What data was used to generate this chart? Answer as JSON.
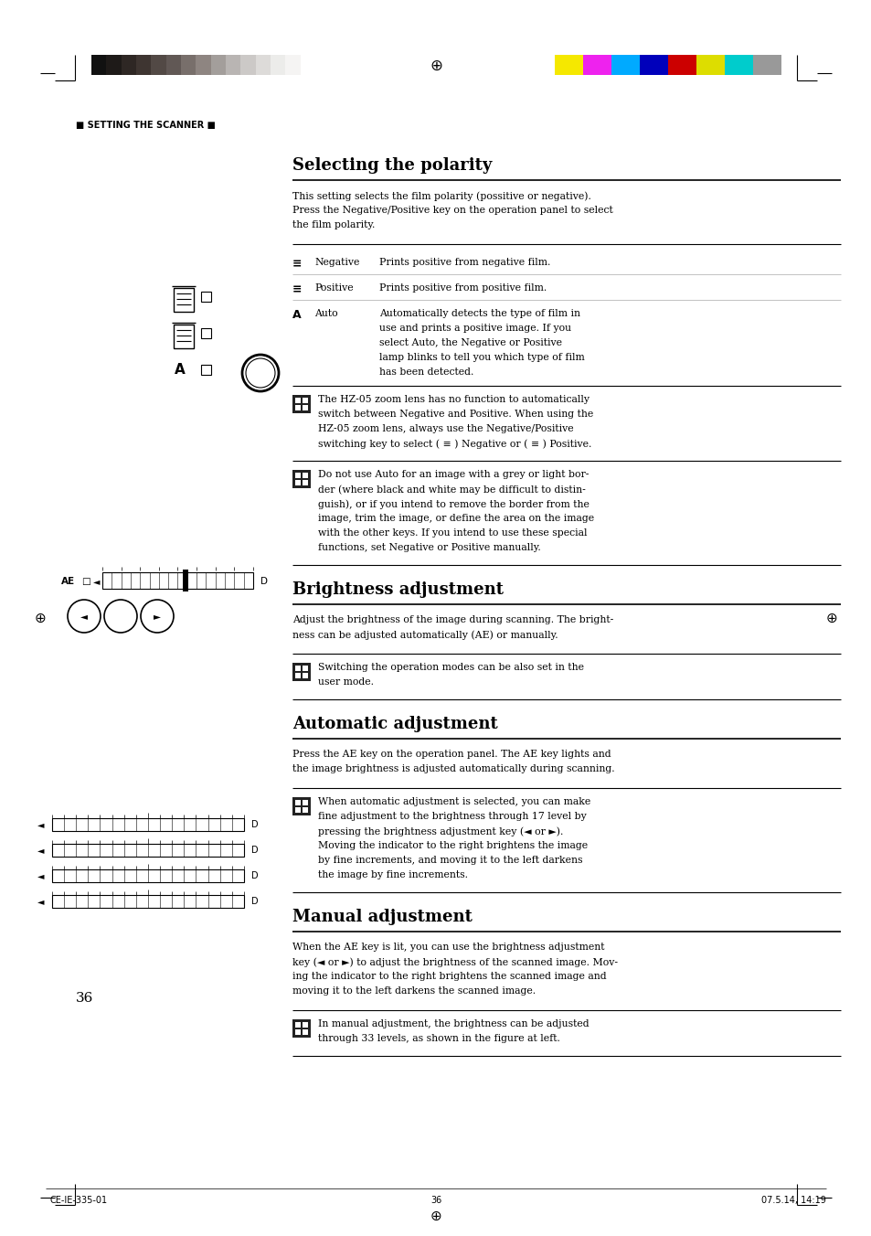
{
  "bg_color": "#ffffff",
  "page_width": 9.54,
  "page_height": 13.52,
  "gray_colors": [
    "#111111",
    "#1e1a18",
    "#2e2724",
    "#3e3531",
    "#524945",
    "#615855",
    "#786f6b",
    "#8e8581",
    "#a39e9b",
    "#b9b5b3",
    "#ccc9c7",
    "#dddbd9",
    "#ececea",
    "#f5f4f3",
    "#ffffff"
  ],
  "color_colors": [
    "#f5e800",
    "#ee22ee",
    "#00aaff",
    "#0000bb",
    "#cc0000",
    "#dddd00",
    "#00cccc",
    "#999999"
  ],
  "section1_title": "Selecting the polarity",
  "section1_intro_lines": [
    "This setting selects the film polarity (possitive or negative).",
    "Press the Negative/Positive key on the operation panel to select",
    "the film polarity."
  ],
  "section2_title": "Brightness adjustment",
  "section2_intro_lines": [
    "Adjust the brightness of the image during scanning. The bright-",
    "ness can be adjusted automatically (AE) or manually."
  ],
  "section3_title": "Automatic adjustment",
  "section3_intro_lines": [
    "Press the AE key on the operation panel. The AE key lights and",
    "the image brightness is adjusted automatically during scanning."
  ],
  "section4_title": "Manual adjustment",
  "section4_intro_lines": [
    "When the AE key is lit, you can use the brightness adjustment",
    "key (◄ or ►) to adjust the brightness of the scanned image. Mov-",
    "ing the indicator to the right brightens the scanned image and",
    "moving it to the left darkens the scanned image."
  ],
  "note1_lines": [
    "The HZ-05 zoom lens has no function to automatically",
    "switch between Negative and Positive. When using the",
    "HZ-05 zoom lens, always use the Negative/Positive",
    "switching key to select ( ≡ ) Negative or ( ≡ ) Positive."
  ],
  "note2_lines": [
    "Do not use Auto for an image with a grey or light bor-",
    "der (where black and white may be difficult to distin-",
    "guish), or if you intend to remove the border from the",
    "image, trim the image, or define the area on the image",
    "with the other keys. If you intend to use these special",
    "functions, set Negative or Positive manually."
  ],
  "note3_lines": [
    "Switching the operation modes can be also set in the",
    "user mode."
  ],
  "note4_lines": [
    "When automatic adjustment is selected, you can make",
    "fine adjustment to the brightness through 17 level by",
    "pressing the brightness adjustment key (◄ or ►).",
    "Moving the indicator to the right brightens the image",
    "by fine increments, and moving it to the left darkens",
    "the image by fine increments."
  ],
  "note5_lines": [
    "In manual adjustment, the brightness can be adjusted",
    "through 33 levels, as shown in the figure at left."
  ],
  "footer_left": "CE-IE-335-01",
  "footer_center": "36",
  "footer_right": "07.5.14, 14:19",
  "page_number": "36",
  "setting_label": "■ SETTING THE SCANNER ■",
  "table_rows": [
    {
      "symbol": "≡",
      "term": "Negative",
      "desc": "Prints positive from negative film.",
      "multiline": false
    },
    {
      "symbol": "≡",
      "term": "Positive",
      "desc": "Prints positive from positive film.",
      "multiline": false
    },
    {
      "symbol": "A",
      "term": "Auto",
      "desc_lines": [
        "Automatically detects the type of film in",
        "use and prints a positive image. If you",
        "select Auto, the Negative or Positive",
        "lamp blinks to tell you which type of film",
        "has been detected."
      ],
      "multiline": true
    }
  ]
}
